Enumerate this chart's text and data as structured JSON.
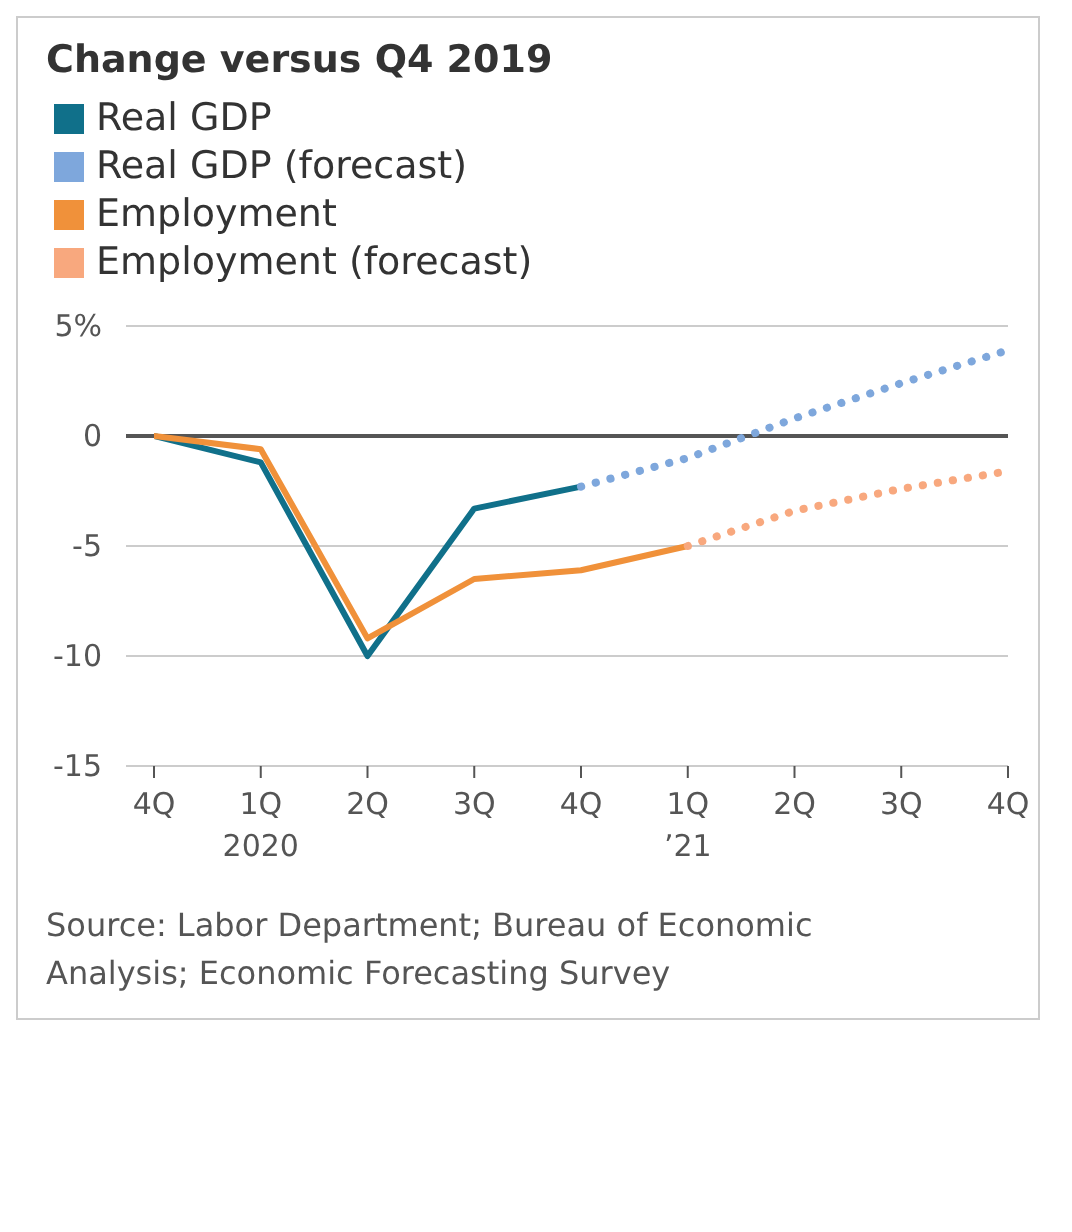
{
  "chart_data": {
    "type": "line",
    "title": "Change versus Q4 2019",
    "categories": [
      "4Q",
      "1Q\n2020",
      "2Q",
      "3Q",
      "4Q",
      "1Q\n’21",
      "2Q",
      "3Q",
      "4Q"
    ],
    "series": [
      {
        "name": "Real GDP",
        "color": "#10708a",
        "values": [
          0,
          -1.2,
          -10,
          -3.3,
          -2.3,
          null,
          null,
          null,
          null
        ]
      },
      {
        "name": "Real GDP (forecast)",
        "color": "#7ea7dc",
        "line_style": "dotted",
        "values": [
          null,
          null,
          null,
          null,
          -2.3,
          -1.0,
          0.8,
          2.4,
          3.9
        ]
      },
      {
        "name": "Employment",
        "color": "#f0913a",
        "values": [
          0,
          -0.6,
          -9.2,
          -6.5,
          -6.1,
          -5.0,
          null,
          null,
          null
        ]
      },
      {
        "name": "Employment (forecast)",
        "color": "#f8a87e",
        "line_style": "dotted",
        "values": [
          null,
          null,
          null,
          null,
          null,
          -5.0,
          -3.4,
          -2.4,
          -1.6
        ]
      }
    ],
    "ylim": [
      -15,
      5
    ],
    "yticks": [
      -15,
      -10,
      -5,
      0,
      {
        "value": 5,
        "label": "5%"
      }
    ],
    "grid": "y",
    "legend": "top left",
    "marker": "none",
    "line_style": "solid",
    "ref_lines": [
      {
        "axis": "y",
        "value": 0,
        "color": "#555555"
      }
    ],
    "annotations": [
      "Source: Labor Department; Bureau of Economic Analysis; Economic Forecasting Survey"
    ]
  }
}
